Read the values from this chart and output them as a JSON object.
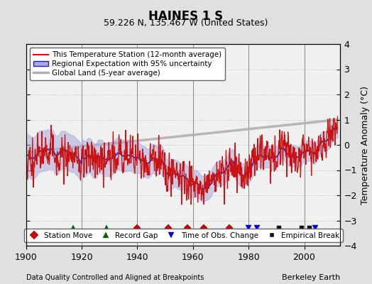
{
  "title": "HAINES 1 S",
  "subtitle": "59.226 N, 135.467 W (United States)",
  "ylabel": "Temperature Anomaly (°C)",
  "xlabel_left": "Data Quality Controlled and Aligned at Breakpoints",
  "xlabel_right": "Berkeley Earth",
  "ylim": [
    -4,
    4
  ],
  "xlim": [
    1900,
    2013
  ],
  "xticks": [
    1900,
    1920,
    1940,
    1960,
    1980,
    2000
  ],
  "yticks": [
    -4,
    -3,
    -2,
    -1,
    0,
    1,
    2,
    3,
    4
  ],
  "bg_color": "#e0e0e0",
  "plot_bg_color": "#f0f0f0",
  "station_moves": [
    1940.0,
    1951.0,
    1958.0,
    1964.0,
    1973.0
  ],
  "record_gaps": [
    1917.0,
    1929.0
  ],
  "obs_changes": [
    1980.0,
    1983.0,
    2004.0
  ],
  "emp_breaks": [
    1991.0,
    1999.0,
    2002.0
  ]
}
